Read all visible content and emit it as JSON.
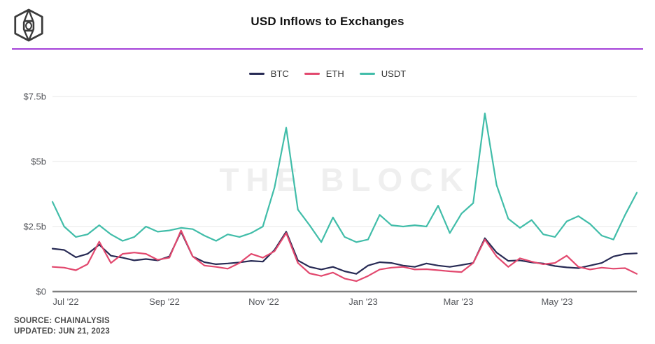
{
  "header": {
    "title": "USD Inflows to Exchanges",
    "logo": "the-block-cube-logo",
    "divider_color": "#a440d8"
  },
  "chart_data": {
    "type": "line",
    "title": "USD Inflows to Exchanges",
    "watermark": "THE BLOCK",
    "x_unit": "weekly, Jul 2022 - Jun 2023",
    "ylim": [
      0,
      7.5
    ],
    "grid": "horizontal",
    "legend_position": "top-center",
    "y_ticks": [
      {
        "label": "$7.5b",
        "value": 7.5
      },
      {
        "label": "$5b",
        "value": 5
      },
      {
        "label": "$2.5b",
        "value": 2.5
      },
      {
        "label": "$0",
        "value": 0
      }
    ],
    "x_ticks": [
      "Jul '22",
      "Sep '22",
      "Nov '22",
      "Jan '23",
      "Mar '23",
      "May '23"
    ],
    "series": [
      {
        "name": "BTC",
        "color": "#272a54",
        "values": [
          1.65,
          1.6,
          1.32,
          1.45,
          1.8,
          1.38,
          1.3,
          1.2,
          1.25,
          1.2,
          1.35,
          2.3,
          1.35,
          1.13,
          1.05,
          1.08,
          1.12,
          1.18,
          1.15,
          1.6,
          2.3,
          1.2,
          0.95,
          0.85,
          0.95,
          0.78,
          0.68,
          1.0,
          1.13,
          1.1,
          1.0,
          0.95,
          1.08,
          1.0,
          0.95,
          1.02,
          1.1,
          2.05,
          1.5,
          1.18,
          1.2,
          1.12,
          1.08,
          0.98,
          0.93,
          0.9,
          1.0,
          1.1,
          1.35,
          1.45,
          1.47
        ]
      },
      {
        "name": "ETH",
        "color": "#e2486e",
        "values": [
          0.95,
          0.92,
          0.82,
          1.05,
          1.92,
          1.1,
          1.45,
          1.5,
          1.45,
          1.22,
          1.3,
          2.35,
          1.35,
          1.0,
          0.95,
          0.88,
          1.1,
          1.45,
          1.3,
          1.55,
          2.25,
          1.1,
          0.7,
          0.6,
          0.73,
          0.5,
          0.4,
          0.6,
          0.85,
          0.92,
          0.95,
          0.85,
          0.86,
          0.82,
          0.78,
          0.75,
          1.1,
          2.0,
          1.35,
          0.95,
          1.28,
          1.15,
          1.05,
          1.1,
          1.38,
          0.95,
          0.85,
          0.92,
          0.88,
          0.9,
          0.68
        ]
      },
      {
        "name": "USDT",
        "color": "#41bda9",
        "values": [
          3.45,
          2.5,
          2.1,
          2.2,
          2.55,
          2.2,
          1.95,
          2.1,
          2.5,
          2.3,
          2.35,
          2.45,
          2.4,
          2.15,
          1.95,
          2.2,
          2.1,
          2.25,
          2.5,
          4.0,
          6.3,
          3.15,
          2.55,
          1.9,
          2.85,
          2.1,
          1.9,
          2.0,
          2.95,
          2.55,
          2.5,
          2.55,
          2.5,
          3.3,
          2.25,
          3.0,
          3.4,
          6.85,
          4.1,
          2.8,
          2.45,
          2.75,
          2.2,
          2.1,
          2.7,
          2.9,
          2.6,
          2.15,
          2.0,
          2.95,
          3.8
        ]
      }
    ]
  },
  "footer": {
    "source": "SOURCE: CHAINALYSIS",
    "updated": "UPDATED: JUN 21, 2023"
  }
}
